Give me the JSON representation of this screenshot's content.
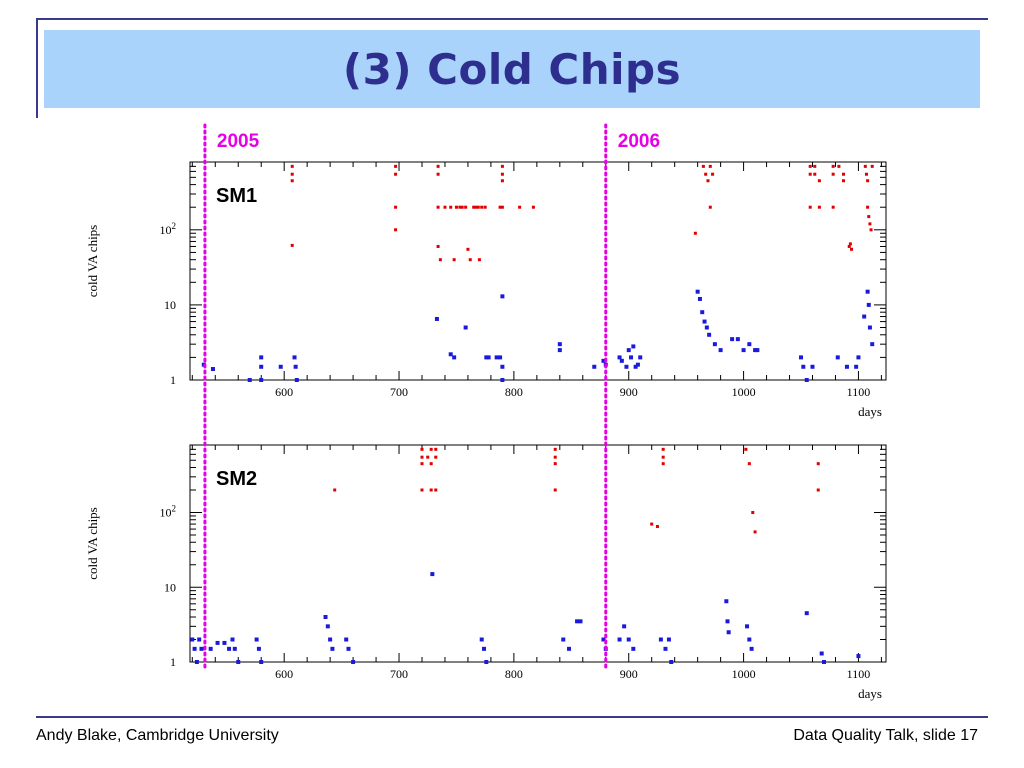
{
  "slide": {
    "title": "(3) Cold Chips",
    "footer_left": "Andy Blake, Cambridge University",
    "footer_right": "Data Quality Talk, slide 17"
  },
  "colors": {
    "title_bg": "#a9d3fb",
    "title_text": "#2e2e8f",
    "frame": "#3a3a8c",
    "year_marker": "#e600e6",
    "series_red": "#e00000",
    "series_blue": "#1a1adb"
  },
  "year_markers": [
    {
      "label": "2005",
      "x": 531
    },
    {
      "label": "2006",
      "x": 880
    }
  ],
  "chart_data": [
    {
      "type": "scatter",
      "panel_label": "SM1",
      "xlabel": "days",
      "ylabel": "cold VA chips",
      "x_range": [
        518,
        1124
      ],
      "y_scale": "log",
      "y_range": [
        1,
        800
      ],
      "x_ticks": [
        "600",
        "700",
        "800",
        "900",
        "1000",
        "1100"
      ],
      "y_ticks": [
        "1",
        "10",
        "10²"
      ],
      "series": [
        {
          "color": "red",
          "points": [
            [
              607,
              700
            ],
            [
              607,
              550
            ],
            [
              607,
              450
            ],
            [
              607,
              62
            ],
            [
              697,
              700
            ],
            [
              697,
              550
            ],
            [
              697,
              200
            ],
            [
              697,
              100
            ],
            [
              734,
              700
            ],
            [
              734,
              550
            ],
            [
              734,
              200
            ],
            [
              734,
              60
            ],
            [
              736,
              40
            ],
            [
              740,
              200
            ],
            [
              745,
              200
            ],
            [
              748,
              40
            ],
            [
              750,
              200
            ],
            [
              753,
              200
            ],
            [
              755,
              200
            ],
            [
              758,
              200
            ],
            [
              760,
              55
            ],
            [
              762,
              40
            ],
            [
              765,
              200
            ],
            [
              767,
              200
            ],
            [
              769,
              200
            ],
            [
              770,
              40
            ],
            [
              772,
              200
            ],
            [
              775,
              200
            ],
            [
              788,
              200
            ],
            [
              790,
              700
            ],
            [
              790,
              550
            ],
            [
              790,
              450
            ],
            [
              790,
              200
            ],
            [
              805,
              200
            ],
            [
              817,
              200
            ],
            [
              965,
              700
            ],
            [
              967,
              550
            ],
            [
              969,
              450
            ],
            [
              971,
              700
            ],
            [
              973,
              550
            ],
            [
              971,
              200
            ],
            [
              1058,
              700
            ],
            [
              1058,
              550
            ],
            [
              1058,
              200
            ],
            [
              1062,
              700
            ],
            [
              1062,
              550
            ],
            [
              1066,
              450
            ],
            [
              1066,
              200
            ],
            [
              1078,
              700
            ],
            [
              1078,
              550
            ],
            [
              1078,
              200
            ],
            [
              1083,
              700
            ],
            [
              1087,
              550
            ],
            [
              1087,
              450
            ],
            [
              1092,
              60
            ],
            [
              1093,
              65
            ],
            [
              1094,
              55
            ],
            [
              1106,
              700
            ],
            [
              1107,
              550
            ],
            [
              1108,
              450
            ],
            [
              1108,
              200
            ],
            [
              1109,
              150
            ],
            [
              1110,
              120
            ],
            [
              1111,
              100
            ],
            [
              1112,
              700
            ],
            [
              958,
              90
            ]
          ]
        },
        {
          "color": "blue",
          "points": [
            [
              530,
              1.6
            ],
            [
              538,
              1.4
            ],
            [
              570,
              1
            ],
            [
              580,
              2
            ],
            [
              580,
              1.5
            ],
            [
              580,
              1
            ],
            [
              597,
              1.5
            ],
            [
              609,
              2
            ],
            [
              610,
              1.5
            ],
            [
              611,
              1
            ],
            [
              733,
              6.5
            ],
            [
              745,
              2.2
            ],
            [
              748,
              2
            ],
            [
              758,
              5
            ],
            [
              776,
              2
            ],
            [
              778,
              2
            ],
            [
              785,
              2
            ],
            [
              788,
              2
            ],
            [
              790,
              13
            ],
            [
              790,
              1.5
            ],
            [
              790,
              1
            ],
            [
              840,
              3
            ],
            [
              840,
              2.5
            ],
            [
              870,
              1.5
            ],
            [
              878,
              1.8
            ],
            [
              880,
              1.6
            ],
            [
              892,
              2
            ],
            [
              894,
              1.8
            ],
            [
              898,
              1.5
            ],
            [
              900,
              2.5
            ],
            [
              902,
              2
            ],
            [
              904,
              2.8
            ],
            [
              906,
              1.5
            ],
            [
              908,
              1.6
            ],
            [
              910,
              2
            ],
            [
              960,
              15
            ],
            [
              962,
              12
            ],
            [
              964,
              8
            ],
            [
              966,
              6
            ],
            [
              968,
              5
            ],
            [
              970,
              4
            ],
            [
              975,
              3
            ],
            [
              980,
              2.5
            ],
            [
              990,
              3.5
            ],
            [
              995,
              3.5
            ],
            [
              1000,
              2.5
            ],
            [
              1005,
              3
            ],
            [
              1010,
              2.5
            ],
            [
              1012,
              2.5
            ],
            [
              1050,
              2
            ],
            [
              1052,
              1.5
            ],
            [
              1055,
              1
            ],
            [
              1060,
              1.5
            ],
            [
              1082,
              2
            ],
            [
              1090,
              1.5
            ],
            [
              1098,
              1.5
            ],
            [
              1100,
              2
            ],
            [
              1105,
              7
            ],
            [
              1108,
              15
            ],
            [
              1109,
              10
            ],
            [
              1110,
              5
            ],
            [
              1112,
              3
            ]
          ]
        }
      ]
    },
    {
      "type": "scatter",
      "panel_label": "SM2",
      "xlabel": "days",
      "ylabel": "cold VA chips",
      "x_range": [
        518,
        1124
      ],
      "y_scale": "log",
      "y_range": [
        1,
        800
      ],
      "x_ticks": [
        "600",
        "700",
        "800",
        "900",
        "1000",
        "1100"
      ],
      "y_ticks": [
        "1",
        "10",
        "10²"
      ],
      "series": [
        {
          "color": "red",
          "points": [
            [
              644,
              200
            ],
            [
              720,
              700
            ],
            [
              720,
              550
            ],
            [
              720,
              450
            ],
            [
              720,
              200
            ],
            [
              725,
              550
            ],
            [
              728,
              700
            ],
            [
              728,
              450
            ],
            [
              728,
              200
            ],
            [
              732,
              700
            ],
            [
              732,
              550
            ],
            [
              732,
              200
            ],
            [
              836,
              700
            ],
            [
              836,
              550
            ],
            [
              836,
              450
            ],
            [
              836,
              200
            ],
            [
              920,
              70
            ],
            [
              925,
              65
            ],
            [
              930,
              700
            ],
            [
              930,
              550
            ],
            [
              930,
              450
            ],
            [
              1002,
              700
            ],
            [
              1005,
              450
            ],
            [
              1008,
              100
            ],
            [
              1010,
              55
            ],
            [
              1065,
              450
            ],
            [
              1065,
              200
            ]
          ]
        },
        {
          "color": "blue",
          "points": [
            [
              520,
              2
            ],
            [
              522,
              1.5
            ],
            [
              524,
              1
            ],
            [
              526,
              2
            ],
            [
              528,
              1.5
            ],
            [
              536,
              1.5
            ],
            [
              542,
              1.8
            ],
            [
              548,
              1.8
            ],
            [
              552,
              1.5
            ],
            [
              555,
              2
            ],
            [
              557,
              1.5
            ],
            [
              560,
              1
            ],
            [
              576,
              2
            ],
            [
              578,
              1.5
            ],
            [
              580,
              1
            ],
            [
              636,
              4
            ],
            [
              638,
              3
            ],
            [
              640,
              2
            ],
            [
              642,
              1.5
            ],
            [
              654,
              2
            ],
            [
              656,
              1.5
            ],
            [
              660,
              1
            ],
            [
              729,
              15
            ],
            [
              772,
              2
            ],
            [
              774,
              1.5
            ],
            [
              776,
              1
            ],
            [
              843,
              2
            ],
            [
              848,
              1.5
            ],
            [
              855,
              3.5
            ],
            [
              858,
              3.5
            ],
            [
              878,
              2
            ],
            [
              880,
              1.5
            ],
            [
              892,
              2
            ],
            [
              896,
              3
            ],
            [
              900,
              2
            ],
            [
              904,
              1.5
            ],
            [
              928,
              2
            ],
            [
              932,
              1.5
            ],
            [
              935,
              2
            ],
            [
              937,
              1
            ],
            [
              985,
              6.5
            ],
            [
              986,
              3.5
            ],
            [
              987,
              2.5
            ],
            [
              1003,
              3
            ],
            [
              1005,
              2
            ],
            [
              1007,
              1.5
            ],
            [
              1055,
              4.5
            ],
            [
              1068,
              1.3
            ],
            [
              1070,
              1
            ],
            [
              1100,
              1.2
            ]
          ]
        }
      ]
    }
  ]
}
